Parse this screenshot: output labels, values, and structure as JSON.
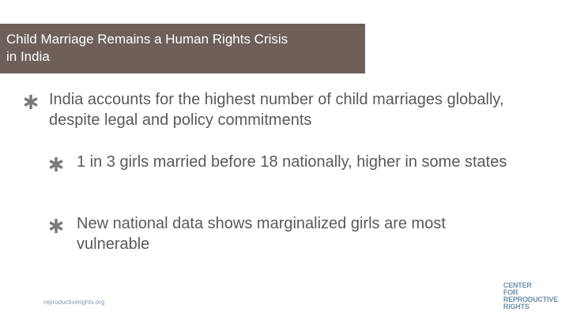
{
  "title_lines": [
    "Child Marriage Remains a Human Rights Crisis",
    "in India"
  ],
  "bullets": [
    {
      "text": "India accounts for the highest number of child marriages globally, despite legal and policy commitments",
      "level": 1
    },
    {
      "text": "1 in 3 girls married before 18 nationally, higher in some states",
      "level": 2
    },
    {
      "text": "New national data shows marginalized girls are most vulnerable",
      "level": 2
    }
  ],
  "footer_url": "reproductiverights.org",
  "logo_lines": [
    "CENTER",
    "FOR",
    "REPRODUCTIVE",
    "RIGHTS"
  ]
}
